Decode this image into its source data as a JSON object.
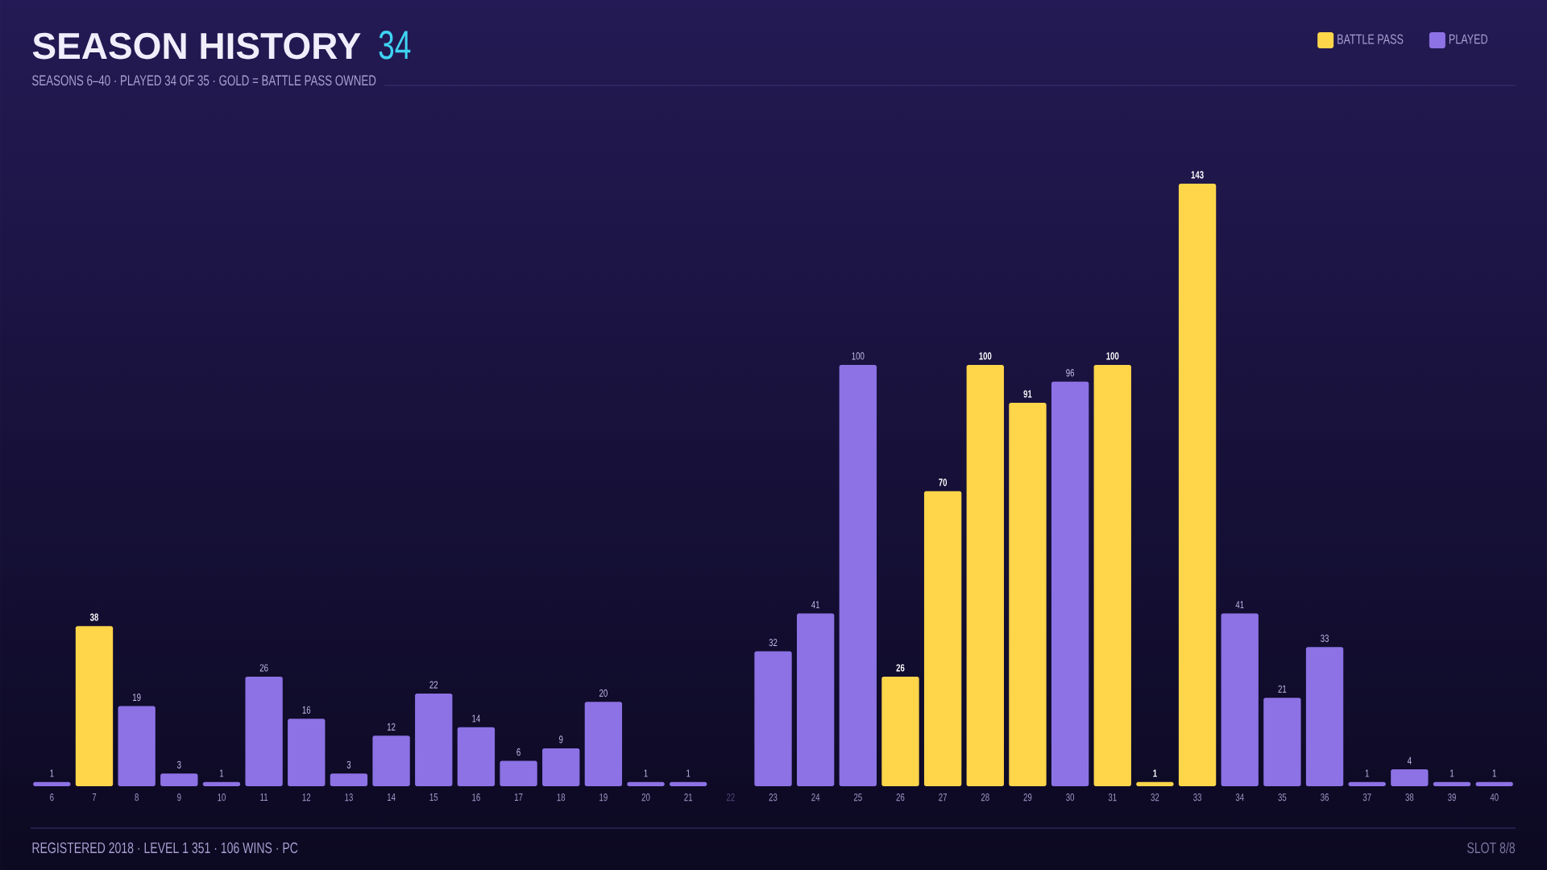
{
  "chart_data": {
    "type": "bar",
    "title": "SEASON HISTORY",
    "subtitle": "SEASONS 6–40 · PLAYED 34 OF 35 · GOLD = BATTLE PASS OWNED",
    "annotations": [
      "34",
      "REGISTERED 2018 · LEVEL 1 351 · 106 WINS · PC",
      "SLOT 8/8"
    ],
    "categories": [
      "6",
      "7",
      "8",
      "9",
      "10",
      "11",
      "12",
      "13",
      "14",
      "15",
      "16",
      "17",
      "18",
      "19",
      "20",
      "21",
      "22",
      "23",
      "24",
      "25",
      "26",
      "27",
      "28",
      "29",
      "30",
      "31",
      "32",
      "33",
      "34",
      "35",
      "36",
      "37",
      "38",
      "39",
      "40"
    ],
    "series": [
      {
        "name": "BATTLE PASS",
        "color": "#ffd54a",
        "values": [
          null,
          38,
          null,
          null,
          null,
          null,
          null,
          null,
          null,
          null,
          null,
          null,
          null,
          null,
          null,
          null,
          null,
          null,
          null,
          null,
          26,
          70,
          100,
          91,
          null,
          100,
          1,
          143,
          null,
          null,
          null,
          null,
          null,
          null,
          null
        ]
      },
      {
        "name": "PLAYED",
        "color": "#8c72e4",
        "values": [
          1,
          null,
          19,
          3,
          1,
          26,
          16,
          3,
          12,
          22,
          14,
          6,
          9,
          20,
          1,
          1,
          null,
          32,
          41,
          100,
          null,
          null,
          null,
          null,
          96,
          null,
          null,
          null,
          41,
          21,
          33,
          1,
          4,
          1,
          1
        ]
      }
    ],
    "data_labels": true,
    "legend": "top right"
  }
}
